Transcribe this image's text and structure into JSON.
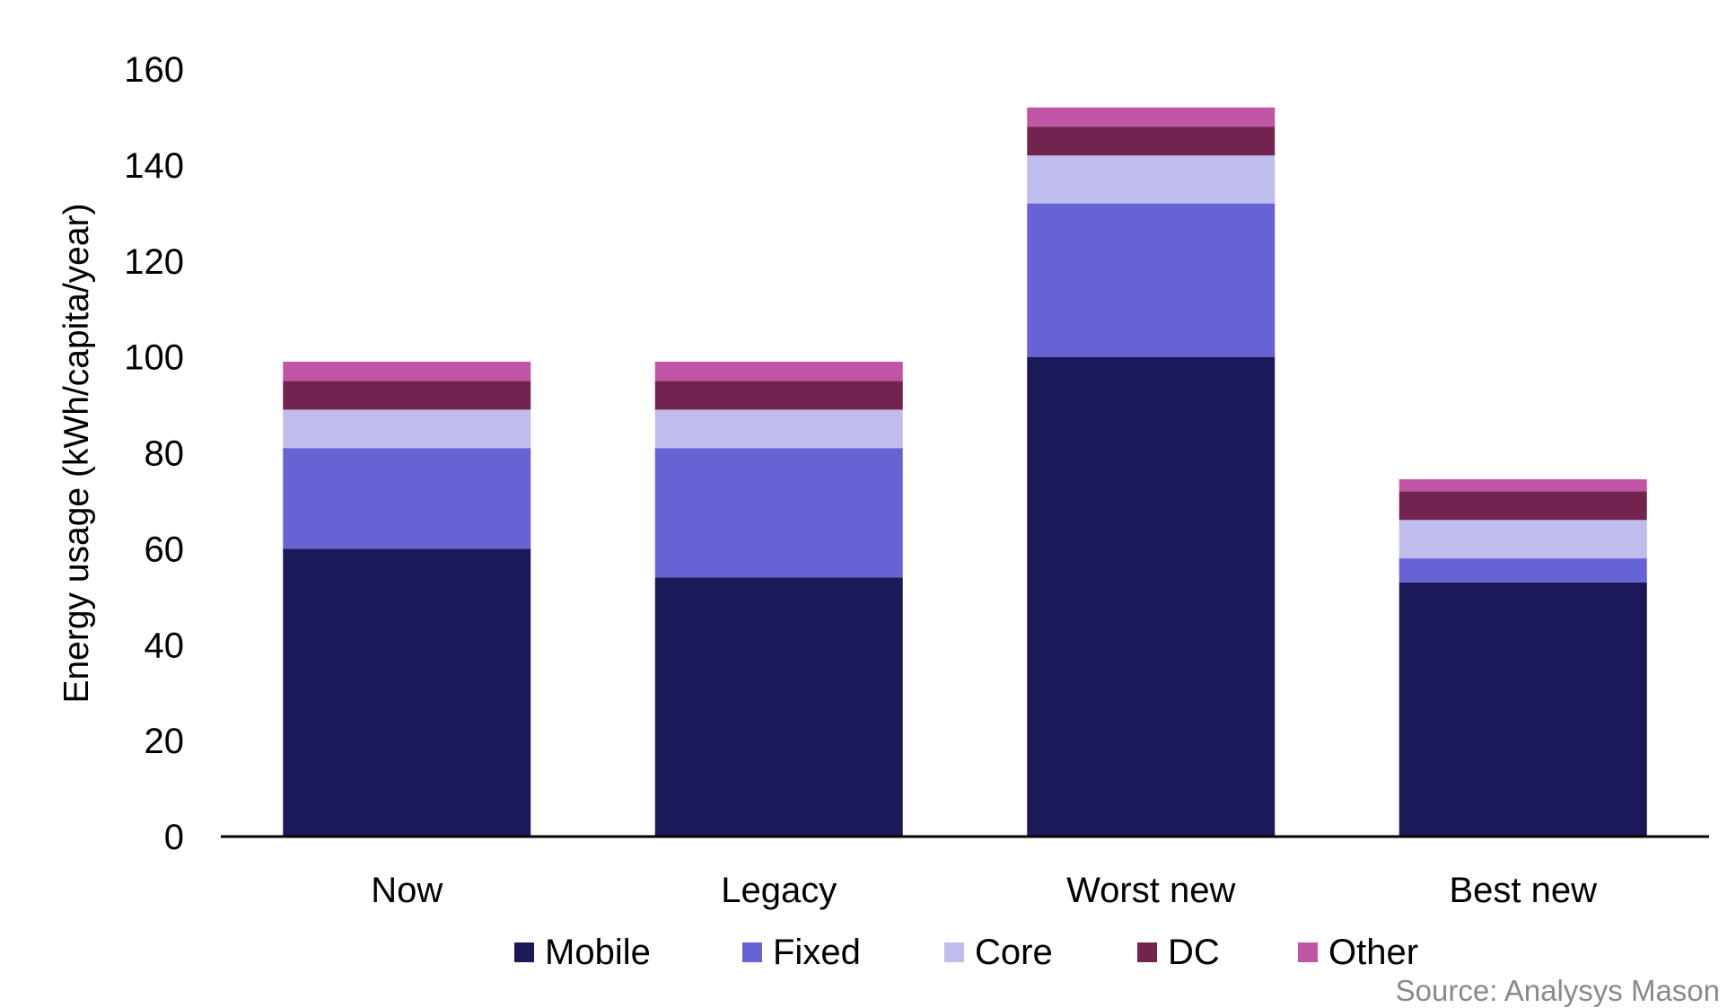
{
  "chart_data": {
    "type": "bar",
    "stacked": true,
    "categories": [
      "Now",
      "Legacy",
      "Worst new",
      "Best new"
    ],
    "series": [
      {
        "name": "Mobile",
        "color": "#1b1958",
        "values": [
          60,
          54,
          100,
          53
        ]
      },
      {
        "name": "Fixed",
        "color": "#6863d4",
        "values": [
          21,
          27,
          32,
          5
        ]
      },
      {
        "name": "Core",
        "color": "#bfbded",
        "values": [
          8,
          8,
          10,
          8
        ]
      },
      {
        "name": "DC",
        "color": "#72234f",
        "values": [
          6,
          6,
          6,
          6
        ]
      },
      {
        "name": "Other",
        "color": "#c055a5",
        "values": [
          4,
          4,
          4,
          2.5
        ]
      }
    ],
    "ylabel": "Energy usage (kWh/capita/year)",
    "xlabel": "",
    "ylim": [
      0,
      160
    ],
    "yticks": [
      "0",
      "20",
      "40",
      "60",
      "80",
      "100",
      "120",
      "140",
      "160"
    ],
    "grid": false,
    "legend_position": "bottom",
    "source": "Source: Analysys Mason"
  }
}
